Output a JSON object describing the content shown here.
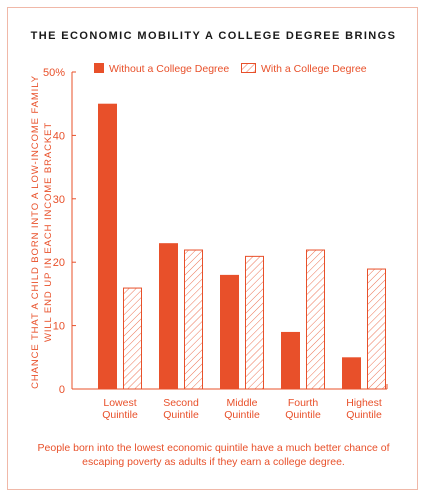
{
  "colors": {
    "accent": "#e8502a",
    "frame": "#f0b8a8",
    "title": "#1a1a1a"
  },
  "caption": "People born into the lowest economic quintile have a much better chance of escaping poverty as adults if they earn a college degree.",
  "chart_data": {
    "type": "bar",
    "title": "THE ECONOMIC MOBILITY A COLLEGE DEGREE BRINGS",
    "xlabel": "",
    "ylabel_lines": [
      "CHANCE THAT A CHILD BORN INTO A LOW-INCOME FAMILY",
      "WILL END UP IN EACH INCOME BRACKET"
    ],
    "categories": [
      [
        "Lowest",
        "Quintile"
      ],
      [
        "Second",
        "Quintile"
      ],
      [
        "Middle",
        "Quintile"
      ],
      [
        "Fourth",
        "Quintile"
      ],
      [
        "Highest",
        "Quintile"
      ]
    ],
    "series": [
      {
        "name": "Without a College Degree",
        "style": "solid",
        "values": [
          45,
          23,
          18,
          9,
          5
        ]
      },
      {
        "name": "With a College Degree",
        "style": "hatched",
        "values": [
          16,
          22,
          21,
          22,
          19
        ]
      }
    ],
    "ylim": [
      0,
      50
    ],
    "yticks": [
      {
        "value": 0,
        "label": "0"
      },
      {
        "value": 10,
        "label": "10"
      },
      {
        "value": 20,
        "label": "20"
      },
      {
        "value": 30,
        "label": "30"
      },
      {
        "value": 40,
        "label": "40"
      },
      {
        "value": 50,
        "label": "50%"
      }
    ],
    "legend_position": "top"
  }
}
